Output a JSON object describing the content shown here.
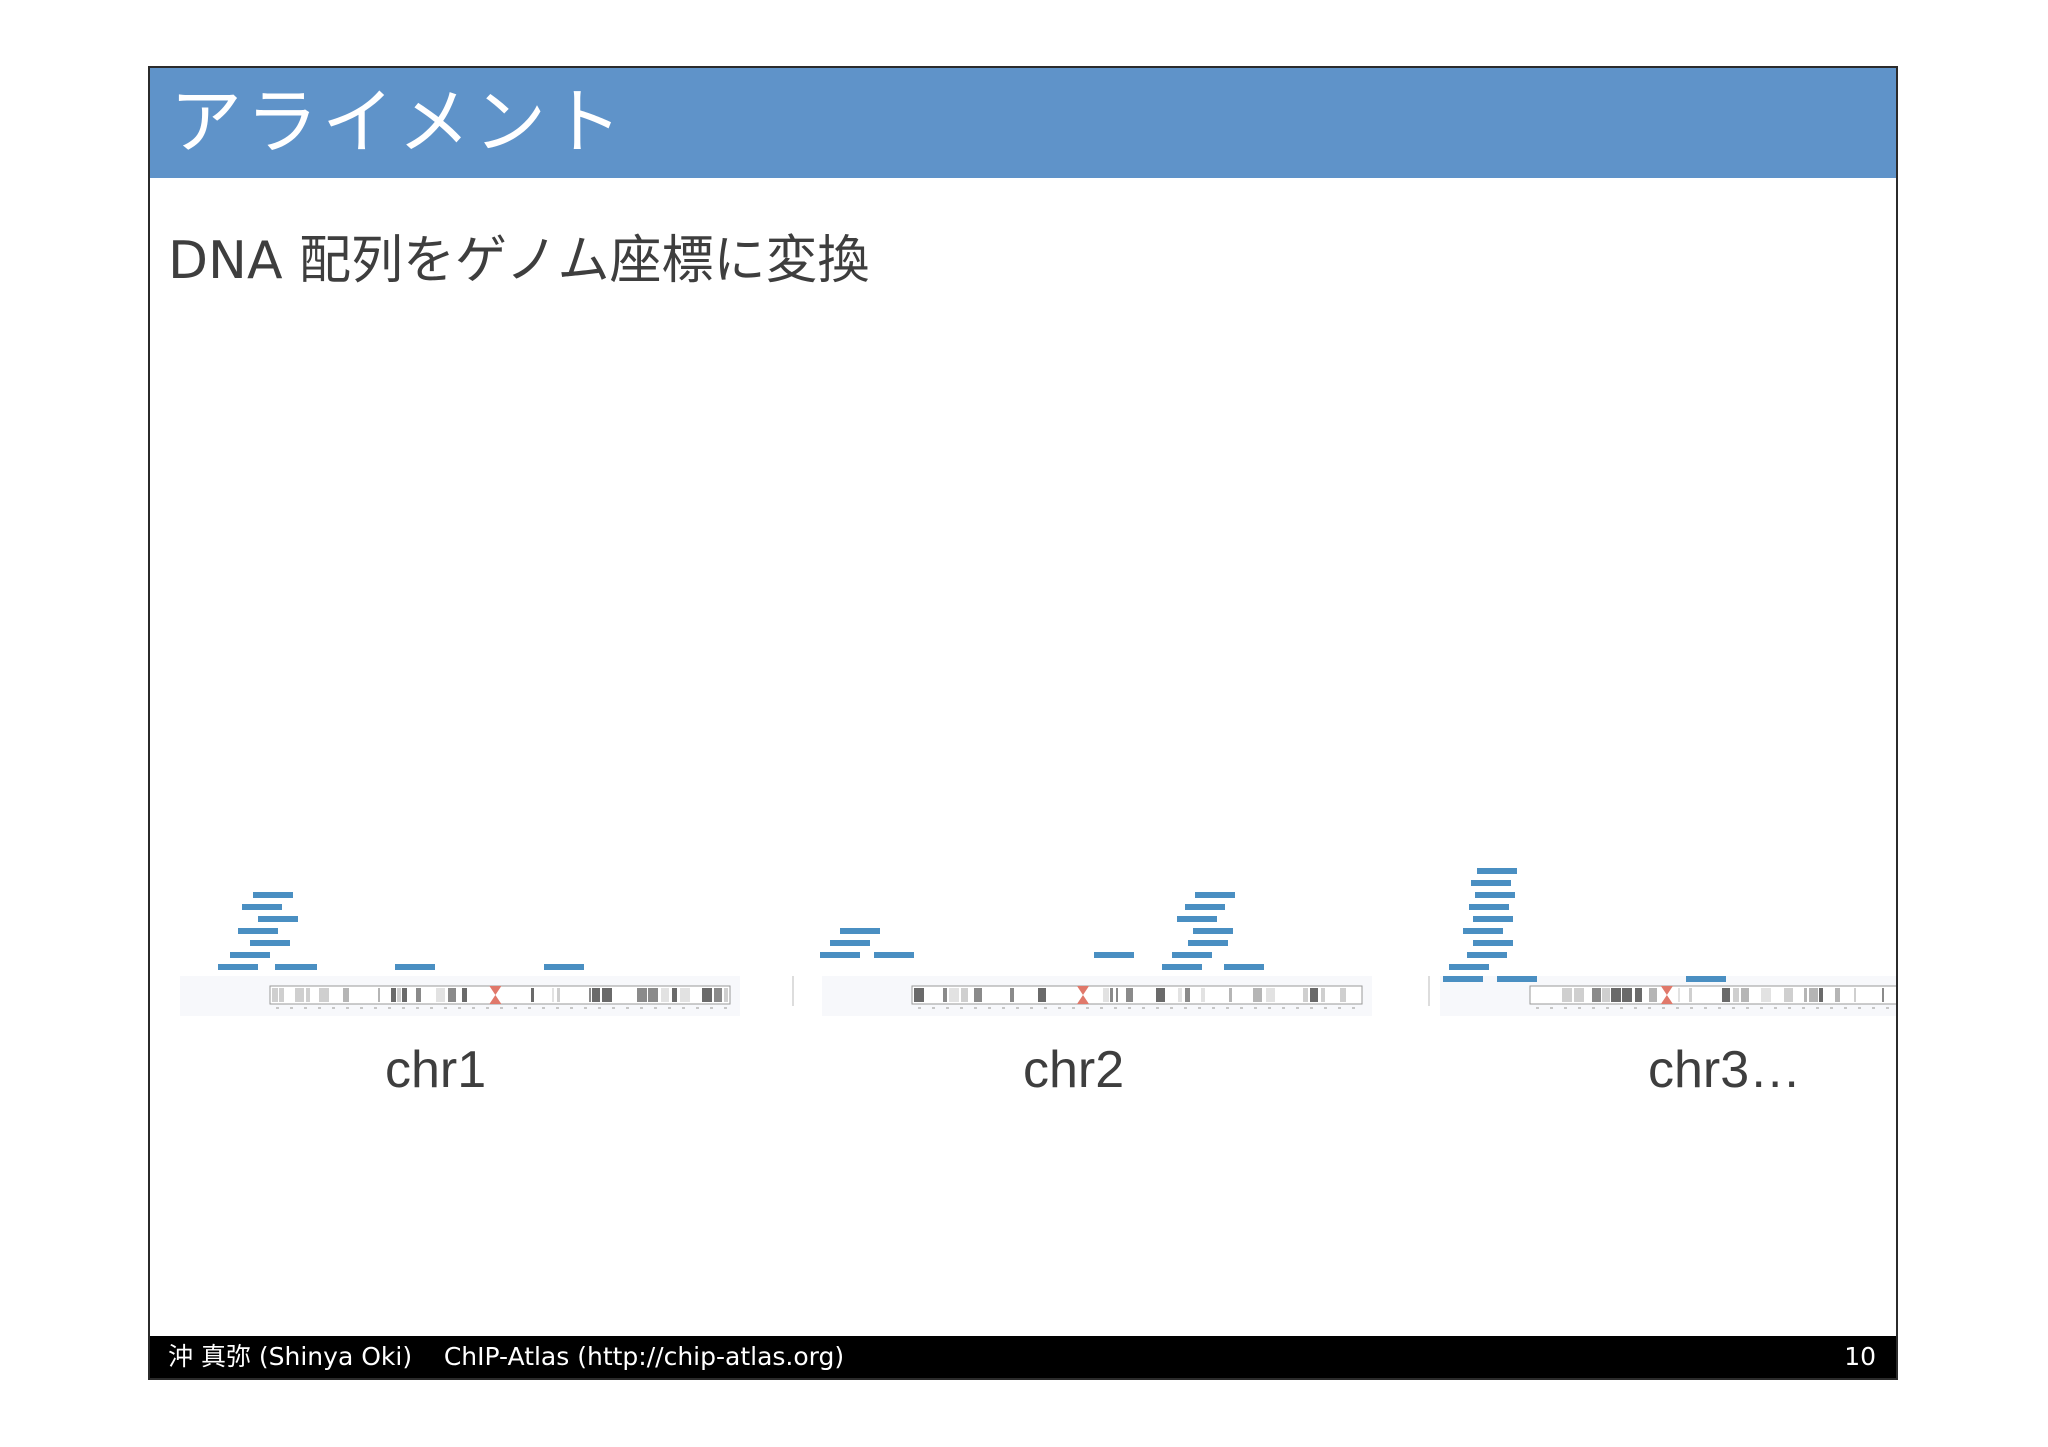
{
  "slide": {
    "title": "アライメント",
    "subtitle": "DNA 配列をゲノム座標に変換",
    "footer_text": "沖 真弥 (Shinya Oki)    ChIP-Atlas (http://chip-atlas.org)",
    "page_number": "10"
  },
  "colors": {
    "header": "#5f93c9",
    "read": "#4a8fc2",
    "centromere": "#e0786a",
    "footer": "#000000"
  },
  "chromosomes": [
    {
      "label": "chr1"
    },
    {
      "label": "chr2"
    },
    {
      "label": "chr3…"
    }
  ]
}
